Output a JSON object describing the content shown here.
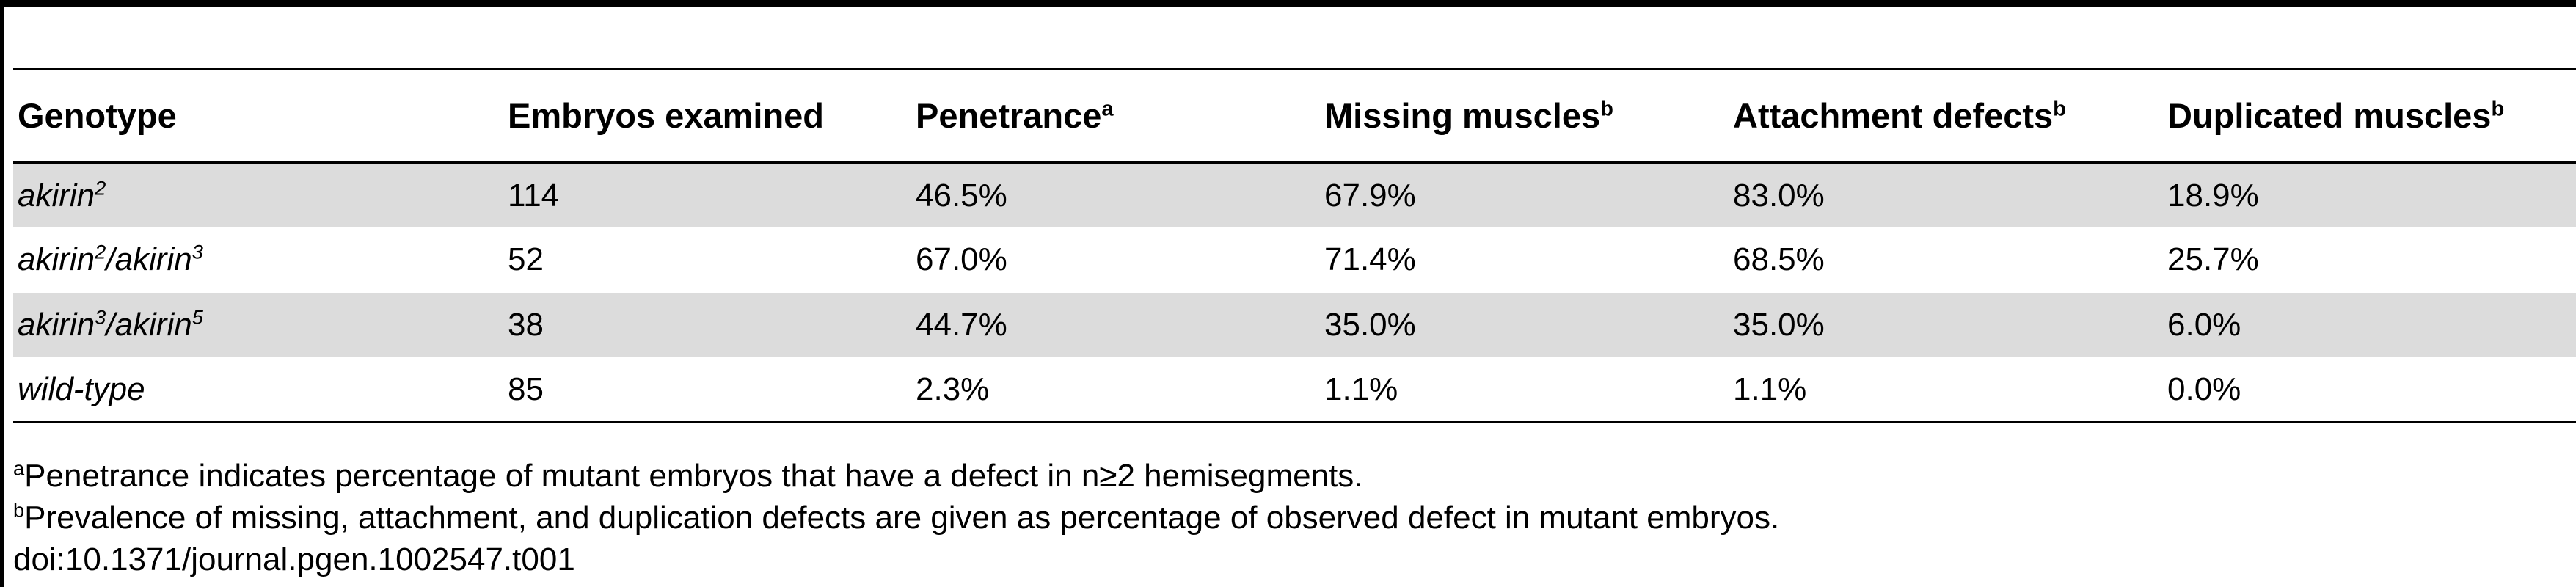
{
  "table": {
    "headers": [
      {
        "label": "Genotype",
        "sup": ""
      },
      {
        "label": "Embryos examined",
        "sup": ""
      },
      {
        "label": "Penetrance",
        "sup": "a"
      },
      {
        "label": "Missing muscles",
        "sup": "b"
      },
      {
        "label": "Attachment defects",
        "sup": "b"
      },
      {
        "label": "Duplicated muscles",
        "sup": "b"
      }
    ],
    "rows": [
      {
        "genotype": {
          "base1": "akirin",
          "sup1": "2",
          "sep": "",
          "base2": "",
          "sup2": ""
        },
        "embryos": "114",
        "penetrance": "46.5%",
        "missing": "67.9%",
        "attachment": "83.0%",
        "duplicated": "18.9%"
      },
      {
        "genotype": {
          "base1": "akirin",
          "sup1": "2",
          "sep": "/",
          "base2": "akirin",
          "sup2": "3"
        },
        "embryos": "52",
        "penetrance": "67.0%",
        "missing": "71.4%",
        "attachment": "68.5%",
        "duplicated": "25.7%"
      },
      {
        "genotype": {
          "base1": "akirin",
          "sup1": "3",
          "sep": "/",
          "base2": "akirin",
          "sup2": "5"
        },
        "embryos": "38",
        "penetrance": "44.7%",
        "missing": "35.0%",
        "attachment": "35.0%",
        "duplicated": "6.0%"
      },
      {
        "genotype": {
          "base1": "wild-type",
          "sup1": "",
          "sep": "",
          "base2": "",
          "sup2": ""
        },
        "embryos": "85",
        "penetrance": "2.3%",
        "missing": "1.1%",
        "attachment": "1.1%",
        "duplicated": "0.0%"
      }
    ]
  },
  "footnotes": {
    "a": {
      "mark": "a",
      "text": "Penetrance indicates percentage of mutant embryos that have a defect in n≥2 hemisegments."
    },
    "b": {
      "mark": "b",
      "text": "Prevalence of missing, attachment, and duplication defects are given as percentage of observed defect in mutant embryos."
    },
    "doi": "doi:10.1371/journal.pgen.1002547.t001"
  }
}
